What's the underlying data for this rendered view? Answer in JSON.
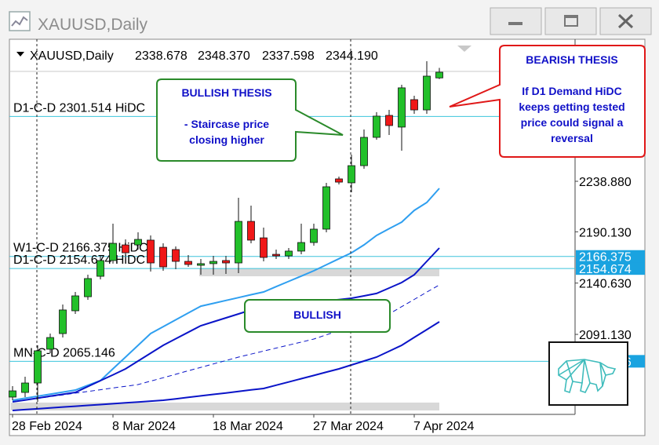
{
  "chart_data": {
    "type": "candlestick",
    "symbol": "XAUUSD,Daily",
    "header_values": [
      "2338.678",
      "2348.370",
      "2337.598",
      "2344.190"
    ],
    "categories": [
      "28 Feb 2024",
      null,
      null,
      null,
      null,
      null,
      null,
      null,
      "8 Mar 2024",
      null,
      null,
      null,
      null,
      null,
      null,
      null,
      "18 Mar 2024",
      null,
      null,
      null,
      null,
      null,
      null,
      null,
      "27 Mar 2024",
      null,
      null,
      null,
      null,
      null,
      null,
      null,
      "7 Apr 2024",
      null,
      null
    ],
    "open": [
      2030.6,
      2035.1,
      2044.2,
      2076.8,
      2091.9,
      2113.9,
      2127.5,
      2147.2,
      2162.4,
      2177.5,
      2177.5,
      2182.1,
      2175.2,
      2173.0,
      2161.6,
      2157.8,
      2159.4,
      2162.4,
      2160.1,
      2200.2,
      2184.3,
      2168.4,
      2166.9,
      2171.5,
      2179.8,
      2192.7,
      2241.2,
      2237.4,
      2254.0,
      2281.3,
      2302.5,
      2291.2,
      2317.7,
      2307.8,
      2338.678
    ],
    "high": [
      2041.2,
      2050.3,
      2080.6,
      2091.9,
      2120.0,
      2132.1,
      2148.7,
      2167.7,
      2198.0,
      2182.8,
      2189.6,
      2186.6,
      2179.0,
      2176.0,
      2167.7,
      2163.9,
      2166.9,
      2166.9,
      2223.0,
      2215.4,
      2194.2,
      2173.0,
      2174.5,
      2198.0,
      2198.0,
      2237.4,
      2243.4,
      2264.6,
      2288.9,
      2305.6,
      2307.8,
      2332.1,
      2321.5,
      2354.8,
      2348.37
    ],
    "low": [
      2027.5,
      2030.6,
      2026.0,
      2073.0,
      2088.1,
      2110.9,
      2124.5,
      2144.2,
      2159.4,
      2163.9,
      2173.0,
      2151.8,
      2152.5,
      2154.0,
      2156.3,
      2148.7,
      2148.7,
      2149.5,
      2150.3,
      2179.0,
      2161.6,
      2163.9,
      2163.9,
      2168.4,
      2176.8,
      2189.6,
      2235.9,
      2228.3,
      2251.0,
      2279.0,
      2283.6,
      2268.4,
      2304.0,
      2304.0,
      2337.598
    ],
    "close": [
      2036.6,
      2044.2,
      2075.3,
      2088.1,
      2114.7,
      2128.3,
      2145.0,
      2162.4,
      2179.0,
      2169.9,
      2182.8,
      2160.1,
      2156.3,
      2161.6,
      2158.6,
      2159.4,
      2161.6,
      2160.1,
      2200.2,
      2182.1,
      2165.4,
      2166.9,
      2171.5,
      2179.8,
      2192.7,
      2233.6,
      2238.1,
      2254.0,
      2281.3,
      2301.8,
      2292.7,
      2329.1,
      2307.8,
      2340.4,
      2344.19
    ],
    "up_color": "#22c02a",
    "down_color": "#f01818",
    "lines": [
      {
        "color": "#2f9ff0",
        "dashed": false,
        "values": [
          2027.5,
          2029.5,
          2031.5,
          2033.4,
          2035.4,
          2037.4,
          2042.0,
          2046.5,
          2057.9,
          2069.2,
          2080.6,
          2091.9,
          2098.5,
          2105.2,
          2111.8,
          2118.4,
          2121.1,
          2123.9,
          2126.6,
          2129.4,
          2132.1,
          2137.2,
          2142.3,
          2147.4,
          2152.5,
          2158.3,
          2164.1,
          2169.9,
          2177.5,
          2186.6,
          2193.1,
          2199.5,
          2210.8,
          2218.4,
          2232.1
        ]
      },
      {
        "color": "#0a14c8",
        "dashed": false,
        "values": [
          2026.0,
          2027.8,
          2029.6,
          2031.5,
          2033.3,
          2035.1,
          2040.8,
          2046.5,
          2052.1,
          2057.8,
          2065.4,
          2073.0,
          2080.6,
          2086.9,
          2093.2,
          2099.5,
          2103.3,
          2107.1,
          2110.9,
          2114.7,
          2116.2,
          2117.7,
          2119.2,
          2120.7,
          2122.2,
          2123.5,
          2124.7,
          2126.0,
          2128.3,
          2130.6,
          2135.9,
          2141.2,
          2148.7,
          2161.6,
          2174.5
        ]
      },
      {
        "color": "#0a14c8",
        "dashed": true,
        "values": [
          2026.0,
          2027.7,
          2029.3,
          2031.0,
          2032.7,
          2034.4,
          2036.0,
          2037.7,
          2039.4,
          2041.0,
          2042.7,
          2046.0,
          2049.3,
          2052.6,
          2056.0,
          2059.3,
          2062.6,
          2065.9,
          2069.2,
          2072.1,
          2075.0,
          2077.9,
          2080.8,
          2083.7,
          2086.6,
          2090.7,
          2094.7,
          2098.8,
          2102.8,
          2106.9,
          2110.9,
          2117.9,
          2124.9,
          2131.9,
          2138.9
        ]
      },
      {
        "color": "#0a14c8",
        "dashed": false,
        "values": [
          2017.7,
          2018.5,
          2019.3,
          2020.2,
          2021.0,
          2021.8,
          2022.6,
          2023.4,
          2024.2,
          2025.1,
          2025.9,
          2026.7,
          2027.5,
          2028.9,
          2030.4,
          2031.8,
          2033.2,
          2034.6,
          2036.1,
          2037.5,
          2038.9,
          2042.1,
          2045.2,
          2048.4,
          2051.5,
          2054.7,
          2057.8,
          2061.6,
          2065.4,
          2069.2,
          2074.9,
          2080.6,
          2088.2,
          2095.7,
          2103.3
        ]
      }
    ],
    "levels": [
      {
        "label": "D1-C-D 2301.514 HiDC",
        "value": 2301.514
      },
      {
        "label": "W1-C-D 2166.375 HiDC",
        "value": 2166.375
      },
      {
        "label": "D1-C-D 2154.674 HiDC",
        "value": 2154.674
      },
      {
        "label": "MN-C-D 2065.146",
        "value": 2065.146
      }
    ],
    "level_color": "#3cc4dc",
    "tag_color": "#1aa3e0",
    "zones": [
      {
        "from": 2147.2,
        "to": 2154.8,
        "start": 15
      },
      {
        "from": 2017.7,
        "to": 2025.3,
        "start": 0
      }
    ],
    "zone_color": "#d8d8d8",
    "ylim": [
      2013.9,
      2376.0
    ],
    "yticks": [
      {
        "value": 2238.88,
        "label": "2238.880"
      },
      {
        "value": 2190.13,
        "label": "2190.130"
      },
      {
        "value": 2140.63,
        "label": "2140.630"
      },
      {
        "value": 2091.13,
        "label": "2091.130"
      }
    ],
    "annotations": [
      {
        "title": "BULLISH THESIS",
        "text": "- Staircase price closing higher"
      },
      {
        "title": "BEARISH THESIS",
        "text": "If D1 Demand HiDC keeps getting tested price could signal a reversal"
      },
      {
        "title": "BULLISH"
      }
    ]
  }
}
